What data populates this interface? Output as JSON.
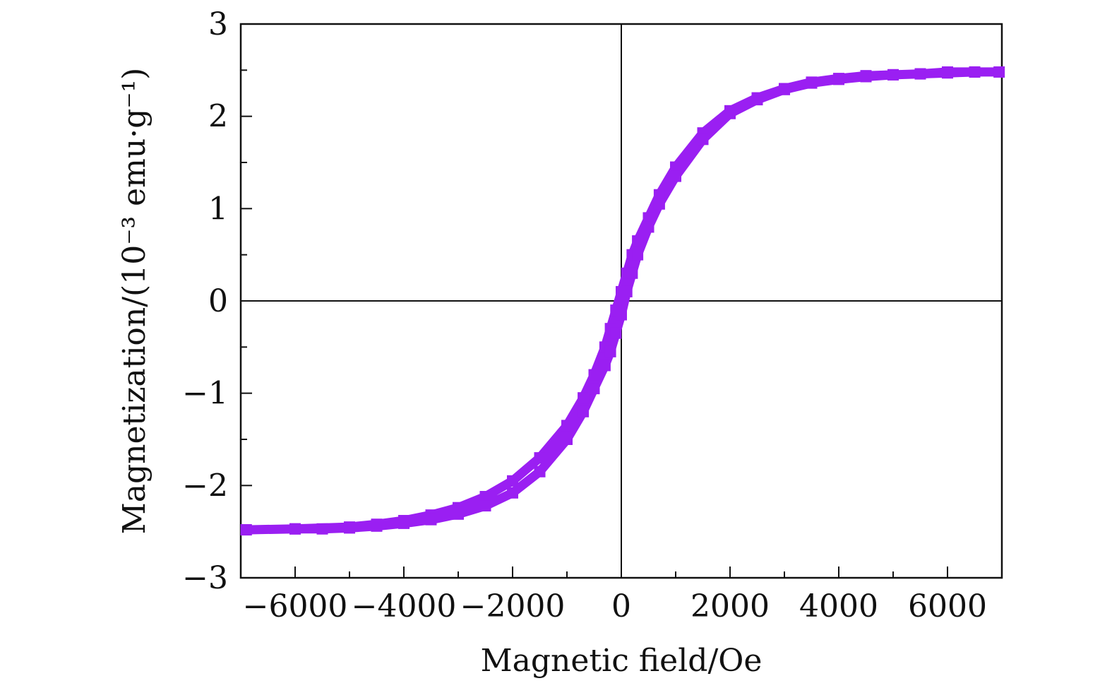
{
  "chart_data": {
    "type": "scatter",
    "title": "",
    "xlabel": "Magnetic field/Oe",
    "ylabel": "Magnetization/(10⁻³ emu·g⁻¹)",
    "xlim": [
      -7000,
      7000
    ],
    "ylim": [
      -3,
      3
    ],
    "xticks": [
      -6000,
      -4000,
      -2000,
      0,
      2000,
      4000,
      6000
    ],
    "yticks": [
      -3,
      -2,
      -1,
      0,
      1,
      2,
      3
    ],
    "xtick_labels": [
      "−6000",
      "−4000",
      "−2000",
      "0",
      "2000",
      "4000",
      "6000"
    ],
    "ytick_labels": [
      "−3",
      "−2",
      "−1",
      "0",
      "1",
      "2",
      "3"
    ],
    "x_minor_step": 1000,
    "y_minor_step": 0.5,
    "grid": false,
    "zero_lines": true,
    "series": [
      {
        "color": "#9a1ff2",
        "points": [
          [
            -6900,
            -2.48
          ],
          [
            -6000,
            -2.47
          ],
          [
            -5000,
            -2.45
          ],
          [
            -4500,
            -2.42
          ],
          [
            -4000,
            -2.38
          ],
          [
            -3500,
            -2.32
          ],
          [
            -3000,
            -2.24
          ],
          [
            -2500,
            -2.12
          ],
          [
            -2000,
            -1.95
          ],
          [
            -1500,
            -1.7
          ],
          [
            -1000,
            -1.35
          ],
          [
            -700,
            -1.05
          ],
          [
            -500,
            -0.8
          ],
          [
            -300,
            -0.5
          ],
          [
            -200,
            -0.3
          ],
          [
            -100,
            -0.1
          ],
          [
            0,
            0.1
          ],
          [
            100,
            0.3
          ],
          [
            200,
            0.5
          ],
          [
            300,
            0.65
          ],
          [
            500,
            0.9
          ],
          [
            700,
            1.15
          ],
          [
            1000,
            1.45
          ],
          [
            1500,
            1.82
          ],
          [
            2000,
            2.06
          ],
          [
            2500,
            2.2
          ],
          [
            3000,
            2.3
          ],
          [
            3500,
            2.37
          ],
          [
            4000,
            2.41
          ],
          [
            4500,
            2.44
          ],
          [
            5000,
            2.45
          ],
          [
            5500,
            2.46
          ],
          [
            6000,
            2.48
          ],
          [
            6500,
            2.48
          ],
          [
            6950,
            2.48
          ],
          [
            6500,
            2.48
          ],
          [
            6000,
            2.47
          ],
          [
            5500,
            2.46
          ],
          [
            5000,
            2.45
          ],
          [
            4500,
            2.43
          ],
          [
            4000,
            2.4
          ],
          [
            3500,
            2.36
          ],
          [
            3000,
            2.29
          ],
          [
            2500,
            2.18
          ],
          [
            2000,
            2.03
          ],
          [
            1500,
            1.75
          ],
          [
            1000,
            1.35
          ],
          [
            700,
            1.05
          ],
          [
            500,
            0.8
          ],
          [
            300,
            0.5
          ],
          [
            200,
            0.3
          ],
          [
            100,
            0.1
          ],
          [
            0,
            -0.15
          ],
          [
            -100,
            -0.35
          ],
          [
            -200,
            -0.55
          ],
          [
            -300,
            -0.7
          ],
          [
            -500,
            -0.95
          ],
          [
            -700,
            -1.2
          ],
          [
            -1000,
            -1.5
          ],
          [
            -1500,
            -1.85
          ],
          [
            -2000,
            -2.08
          ],
          [
            -2500,
            -2.22
          ],
          [
            -3000,
            -2.31
          ],
          [
            -3500,
            -2.37
          ],
          [
            -4000,
            -2.41
          ],
          [
            -4500,
            -2.44
          ],
          [
            -5000,
            -2.46
          ],
          [
            -5500,
            -2.47
          ],
          [
            -6000,
            -2.47
          ],
          [
            -6900,
            -2.48
          ]
        ]
      }
    ]
  }
}
